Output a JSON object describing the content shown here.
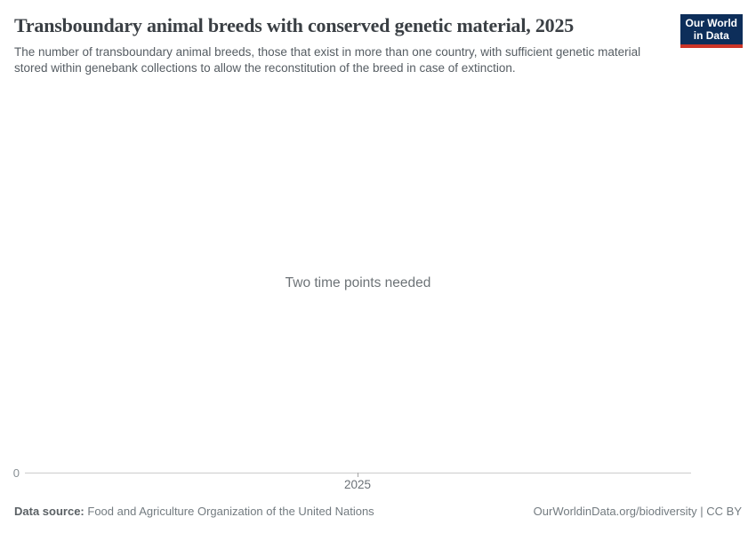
{
  "header": {
    "title": "Transboundary animal breeds with conserved genetic material, 2025",
    "subtitle": "The number of transboundary animal breeds, those that exist in more than one country, with sufficient genetic material stored within genebank collections to allow the reconstitution of the breed in case of extinction.",
    "logo": {
      "line1": "Our World",
      "line2": "in Data",
      "background_color": "#0d2e5a",
      "stripe_color": "#cc3528"
    }
  },
  "chart": {
    "message": "Two time points needed",
    "y_axis_tick_label": "0",
    "x_axis_tick_label": "2025",
    "axis_line_color": "#cccccc",
    "axis_label_color": "#878f94"
  },
  "chart_data": {
    "type": "line",
    "title": "Transboundary animal breeds with conserved genetic material, 2025",
    "series": [],
    "x": [],
    "x_ticks": [
      "2025"
    ],
    "y_ticks": [
      "0"
    ],
    "xlabel": "",
    "ylabel": "",
    "grid": false,
    "legend": "none",
    "annotations": [
      "Two time points needed"
    ]
  },
  "footer": {
    "source_label": "Data source:",
    "source_value": "Food and Agriculture Organization of the United Nations",
    "credit": "OurWorldinData.org/biodiversity | CC BY"
  }
}
